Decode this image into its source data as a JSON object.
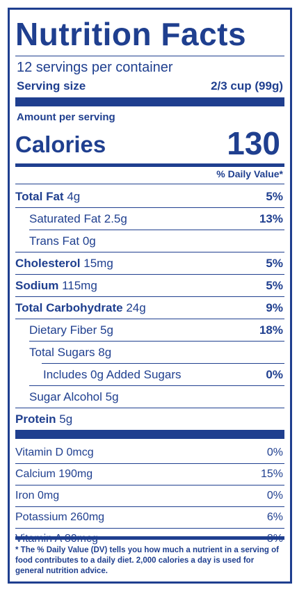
{
  "title": "Nutrition Facts",
  "servings_per_container": "12 servings per container",
  "serving_size": {
    "label": "Serving size",
    "value": "2/3 cup (99g)"
  },
  "amount_per_serving": "Amount per serving",
  "calories": {
    "label": "Calories",
    "value": "130"
  },
  "daily_value_header": "% Daily Value*",
  "nutrients": [
    {
      "name": "Total Fat",
      "amount": "4g",
      "dv": "5%"
    },
    {
      "name": "Saturated Fat",
      "amount": "2.5g",
      "dv": "13%"
    },
    {
      "name": "Trans Fat",
      "amount": "0g",
      "dv": ""
    },
    {
      "name": "Cholesterol",
      "amount": "15mg",
      "dv": "5%"
    },
    {
      "name": "Sodium",
      "amount": "115mg",
      "dv": "5%"
    },
    {
      "name": "Total Carbohydrate",
      "amount": "24g",
      "dv": "9%"
    },
    {
      "name": "Dietary Fiber",
      "amount": "5g",
      "dv": "18%"
    },
    {
      "name": "Total Sugars",
      "amount": "8g",
      "dv": ""
    },
    {
      "name": "Includes 0g Added Sugars",
      "amount": "",
      "dv": "0%"
    },
    {
      "name": "Sugar Alcohol",
      "amount": "5g",
      "dv": ""
    },
    {
      "name": "Protein",
      "amount": "5g",
      "dv": ""
    }
  ],
  "vitamins": [
    {
      "name": "Vitamin D 0mcg",
      "dv": "0%"
    },
    {
      "name": "Calcium 190mg",
      "dv": "15%"
    },
    {
      "name": "Iron 0mg",
      "dv": "0%"
    },
    {
      "name": "Potassium 260mg",
      "dv": "6%"
    },
    {
      "name": "Vitamin A 80mcg",
      "dv": "8%"
    }
  ],
  "footnote": "* The % Daily Value (DV) tells you how much a nutrient in a serving of food contributes to a daily diet. 2,000 calories a day is used for general nutrition advice.",
  "colors": {
    "ink": "#1f3f8f",
    "background": "#ffffff"
  }
}
